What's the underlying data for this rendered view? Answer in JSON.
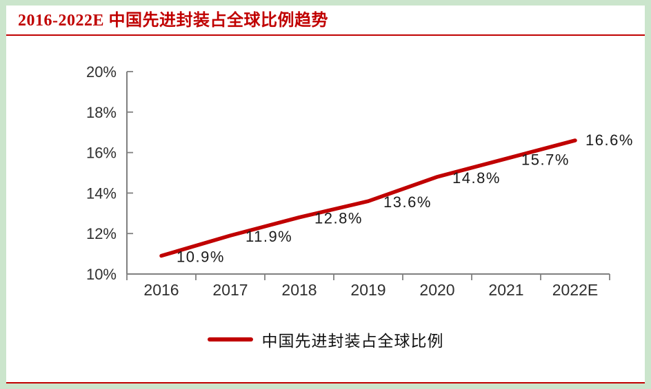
{
  "page": {
    "title": "2016-2022E 中国先进封装占全球比例趋势"
  },
  "colors": {
    "accent_red": "#c00000",
    "frame_green": "#cbe5cc",
    "axis_gray": "#7f7f7f",
    "label_dark": "#1a1a1a"
  },
  "chart_data": {
    "type": "line",
    "title": "2016-2022E 中国先进封装占全球比例趋势",
    "categories": [
      "2016",
      "2017",
      "2018",
      "2019",
      "2020",
      "2021",
      "2022E"
    ],
    "series": [
      {
        "name": "中国先进封装占全球比例",
        "values": [
          10.9,
          11.9,
          12.8,
          13.6,
          14.8,
          15.7,
          16.6
        ],
        "color": "#c00000"
      }
    ],
    "data_labels": [
      "10.9%",
      "11.9%",
      "12.8%",
      "13.6%",
      "14.8%",
      "15.7%",
      "16.6%"
    ],
    "xlabel": "",
    "ylabel": "",
    "ylim": [
      10,
      20
    ],
    "ytick_step": 2,
    "ytick_labels": [
      "10%",
      "12%",
      "14%",
      "16%",
      "18%",
      "20%"
    ],
    "grid": false,
    "legend_position": "bottom"
  }
}
